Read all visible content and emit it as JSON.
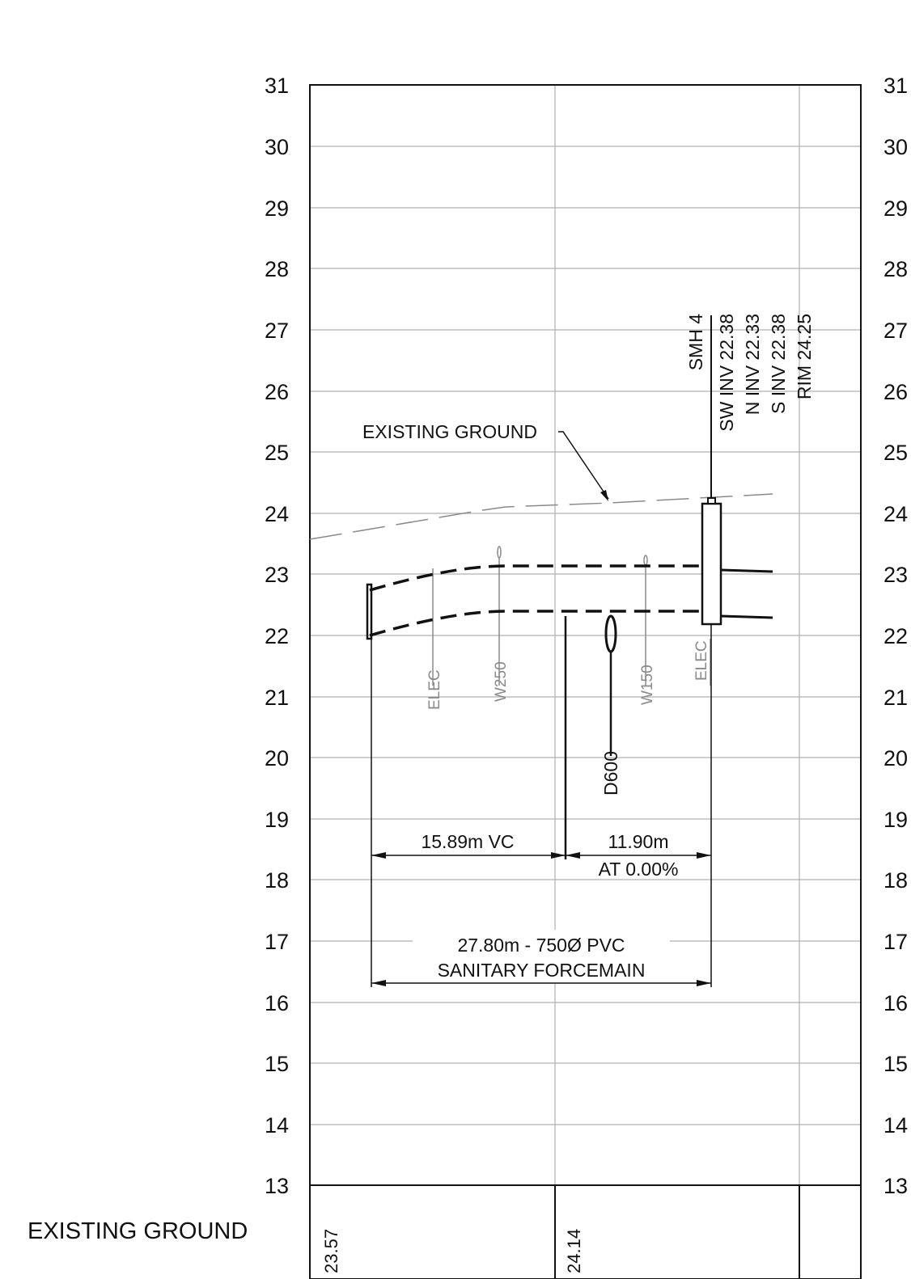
{
  "elevation_labels": [
    "31",
    "30",
    "29",
    "28",
    "27",
    "26",
    "25",
    "24",
    "23",
    "22",
    "21",
    "20",
    "19",
    "18",
    "17",
    "16",
    "15",
    "14",
    "13"
  ],
  "manhole": {
    "name": "SMH 4",
    "details": [
      "SW INV 22.38",
      "N INV 22.33",
      "S INV 22.38",
      "RIM 24.25"
    ]
  },
  "existing_ground_label": "EXISTING GROUND",
  "utilities": {
    "elec_1": "ELEC",
    "w250": "W250",
    "d600": "D600",
    "w150": "W150",
    "elec_2": "ELEC"
  },
  "dimensions": {
    "vc": "15.89m VC",
    "segment_length": "11.90m",
    "segment_slope": "AT 0.00%",
    "total_line1": "27.80m - 750Ø PVC",
    "total_line2": "SANITARY FORCEMAIN"
  },
  "table": {
    "row_label": "EXISTING GROUND",
    "values": [
      "23.57",
      "24.14"
    ]
  },
  "colors": {
    "line": "#111111",
    "grid": "#b0b0b0",
    "utility": "#8a8a8a"
  }
}
